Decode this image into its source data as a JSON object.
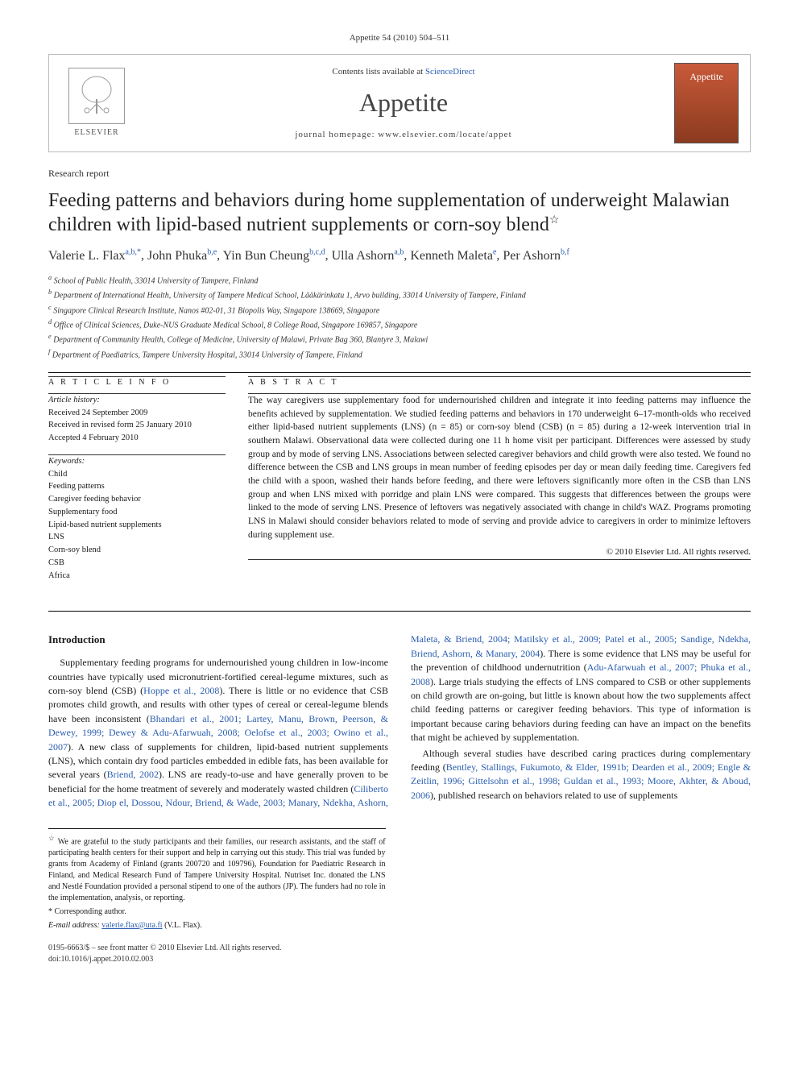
{
  "page_header": "Appetite 54 (2010) 504–511",
  "masthead": {
    "contents_prefix": "Contents lists available at ",
    "contents_link": "ScienceDirect",
    "journal_name": "Appetite",
    "homepage_label": "journal homepage: www.elsevier.com/locate/appet",
    "publisher_label": "ELSEVIER",
    "cover_label": "Appetite"
  },
  "section_label": "Research report",
  "title": "Feeding patterns and behaviors during home supplementation of underweight Malawian children with lipid-based nutrient supplements or corn-soy blend",
  "title_note_mark": "☆",
  "authors_html": [
    {
      "name": "Valerie L. Flax",
      "sup": "a,b,*"
    },
    {
      "name": "John Phuka",
      "sup": "b,e"
    },
    {
      "name": "Yin Bun Cheung",
      "sup": "b,c,d"
    },
    {
      "name": "Ulla Ashorn",
      "sup": "a,b"
    },
    {
      "name": "Kenneth Maleta",
      "sup": "e"
    },
    {
      "name": "Per Ashorn",
      "sup": "b,f"
    }
  ],
  "affiliations": [
    {
      "key": "a",
      "text": "School of Public Health, 33014 University of Tampere, Finland"
    },
    {
      "key": "b",
      "text": "Department of International Health, University of Tampere Medical School, Lääkärinkatu 1, Arvo building, 33014 University of Tampere, Finland"
    },
    {
      "key": "c",
      "text": "Singapore Clinical Research Institute, Nanos #02-01, 31 Biopolis Way, Singapore 138669, Singapore"
    },
    {
      "key": "d",
      "text": "Office of Clinical Sciences, Duke-NUS Graduate Medical School, 8 College Road, Singapore 169857, Singapore"
    },
    {
      "key": "e",
      "text": "Department of Community Health, College of Medicine, University of Malawi, Private Bag 360, Blantyre 3, Malawi"
    },
    {
      "key": "f",
      "text": "Department of Paediatrics, Tampere University Hospital, 33014 University of Tampere, Finland"
    }
  ],
  "article_info": {
    "heading": "A R T I C L E   I N F O",
    "history_label": "Article history:",
    "history": [
      "Received 24 September 2009",
      "Received in revised form 25 January 2010",
      "Accepted 4 February 2010"
    ],
    "keywords_label": "Keywords:",
    "keywords": [
      "Child",
      "Feeding patterns",
      "Caregiver feeding behavior",
      "Supplementary food",
      "Lipid-based nutrient supplements",
      "LNS",
      "Corn-soy blend",
      "CSB",
      "Africa"
    ]
  },
  "abstract": {
    "heading": "A B S T R A C T",
    "text": "The way caregivers use supplementary food for undernourished children and integrate it into feeding patterns may influence the benefits achieved by supplementation. We studied feeding patterns and behaviors in 170 underweight 6–17-month-olds who received either lipid-based nutrient supplements (LNS) (n = 85) or corn-soy blend (CSB) (n = 85) during a 12-week intervention trial in southern Malawi. Observational data were collected during one 11 h home visit per participant. Differences were assessed by study group and by mode of serving LNS. Associations between selected caregiver behaviors and child growth were also tested. We found no difference between the CSB and LNS groups in mean number of feeding episodes per day or mean daily feeding time. Caregivers fed the child with a spoon, washed their hands before feeding, and there were leftovers significantly more often in the CSB than LNS group and when LNS mixed with porridge and plain LNS were compared. This suggests that differences between the groups were linked to the mode of serving LNS. Presence of leftovers was negatively associated with change in child's WAZ. Programs promoting LNS in Malawi should consider behaviors related to mode of serving and provide advice to caregivers in order to minimize leftovers during supplement use.",
    "copyright": "© 2010 Elsevier Ltd. All rights reserved."
  },
  "body": {
    "intro_heading": "Introduction",
    "para1a": "Supplementary feeding programs for undernourished young children in low-income countries have typically used micronutrient-fortified cereal-legume mixtures, such as corn-soy blend (CSB) (",
    "cite1": "Hoppe et al., 2008",
    "para1b": "). There is little or no evidence that CSB promotes child growth, and results with other types of cereal or cereal-legume blends have been inconsistent (",
    "cite2": "Bhandari et al., 2001; Lartey, Manu, Brown, Peerson, & Dewey, 1999; Dewey & Adu-Afarwuah, 2008; Oelofse et al., 2003; Owino et al., 2007",
    "para1c": "). A new class of supplements for children, lipid-based nutrient",
    "para2a": "supplements (LNS), which contain dry food particles embedded in edible fats, has been available for several years (",
    "cite3": "Briend, 2002",
    "para2b": "). LNS are ready-to-use and have generally proven to be beneficial for the home treatment of severely and moderately wasted children (",
    "cite4": "Ciliberto et al., 2005; Diop el, Dossou, Ndour, Briend, & Wade, 2003; Manary, Ndekha, Ashorn, Maleta, & Briend, 2004; Matilsky et al., 2009; Patel et al., 2005; Sandige, Ndekha, Briend, Ashorn, & Manary, 2004",
    "para2c": "). There is some evidence that LNS may be useful for the prevention of childhood undernutrition (",
    "cite5": "Adu-Afarwuah et al., 2007; Phuka et al., 2008",
    "para2d": "). Large trials studying the effects of LNS compared to CSB or other supplements on child growth are on-going, but little is known about how the two supplements affect child feeding patterns or caregiver feeding behaviors. This type of information is important because caring behaviors during feeding can have an impact on the benefits that might be achieved by supplementation.",
    "para3a": "Although several studies have described caring practices during complementary feeding (",
    "cite6": "Bentley, Stallings, Fukumoto, & Elder, 1991b; Dearden et al., 2009; Engle & Zeitlin, 1996; Gittelsohn et al., 1998; Guldan et al., 1993; Moore, Akhter, & Aboud, 2006",
    "para3b": "), published research on behaviors related to use of supplements"
  },
  "footnotes": {
    "note_mark": "☆",
    "note_text": "We are grateful to the study participants and their families, our research assistants, and the staff of participating health centers for their support and help in carrying out this study. This trial was funded by grants from Academy of Finland (grants 200720 and 109796), Foundation for Paediatric Research in Finland, and Medical Research Fund of Tampere University Hospital. Nutriset Inc. donated the LNS and Nestlé Foundation provided a personal stipend to one of the authors (JP). The funders had no role in the implementation, analysis, or reporting.",
    "corr_mark": "*",
    "corr_text": "Corresponding author.",
    "email_label": "E-mail address:",
    "email_value": "valerie.flax@uta.fi",
    "email_who": "(V.L. Flax)."
  },
  "footer": {
    "line1": "0195-6663/$ – see front matter © 2010 Elsevier Ltd. All rights reserved.",
    "line2": "doi:10.1016/j.appet.2010.02.003"
  },
  "style": {
    "accent_color": "#2a5db0",
    "text_color": "#1a1a1a",
    "rule_color": "#000000",
    "body_fontsize_pt": 12,
    "title_fontsize_pt": 24,
    "journal_fontsize_pt": 32,
    "cover_bg_top": "#c85a3a",
    "cover_bg_bottom": "#8b3a1f"
  }
}
